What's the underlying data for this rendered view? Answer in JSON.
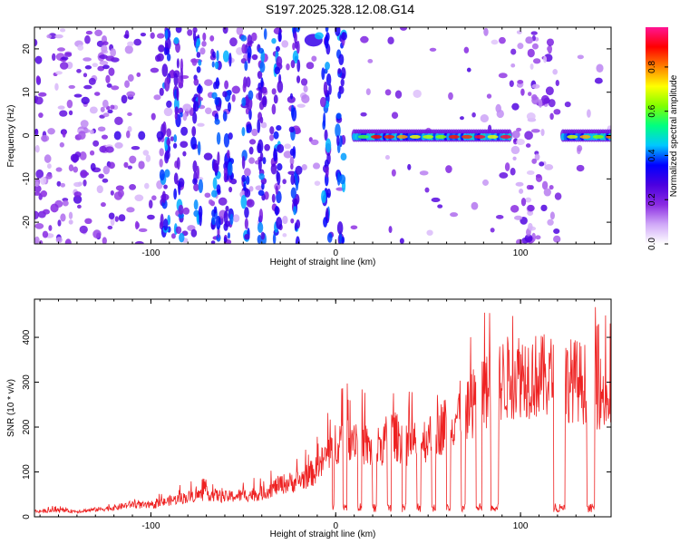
{
  "title": "S197.2025.328.12.08.G14",
  "chart_data": [
    {
      "type": "heatmap",
      "xlabel": "Height of straight line (km)",
      "ylabel": "Frequency (Hz)",
      "xlim": [
        -163,
        149
      ],
      "ylim": [
        -25,
        25
      ],
      "x_ticks": [
        -100,
        0,
        100
      ],
      "y_ticks": [
        -20,
        -10,
        0,
        10,
        20
      ],
      "grid": false,
      "colorbar": {
        "label": "Normalized spectral amplitude",
        "range": [
          0,
          0.98
        ],
        "ticks": [
          0.0,
          0.2,
          0.4,
          0.6,
          0.8
        ],
        "tick_labels": [
          "0.0",
          "0.2",
          "0.4",
          "0.6",
          "0.8"
        ],
        "colors": [
          "#ffffff",
          "#d0a8f8",
          "#8a2be2",
          "#4b00e0",
          "#0000ff",
          "#00c8ff",
          "#00ff80",
          "#80ff00",
          "#ffff00",
          "#ff8000",
          "#ff0000",
          "#ff1493"
        ]
      },
      "features": [
        {
          "description": "strong narrow band near 0 Hz",
          "x_range": [
            10,
            95
          ],
          "peak": 0.95
        },
        {
          "description": "strong narrow band near 0 Hz",
          "x_range": [
            123,
            149
          ],
          "peak": 0.95
        },
        {
          "description": "bright patch near top",
          "x_range": [
            -17,
            -7
          ],
          "freq": 22,
          "peak": 0.45
        }
      ]
    },
    {
      "type": "line",
      "xlabel": "Height of straight line (km)",
      "ylabel": "SNR (10 * v/v)",
      "xlim": [
        -163,
        149
      ],
      "ylim": [
        0,
        485
      ],
      "x_ticks": [
        -100,
        0,
        100
      ],
      "y_ticks": [
        0,
        100,
        200,
        300,
        400
      ],
      "grid": false,
      "color": "#ee2222",
      "x": [
        -163,
        -150,
        -140,
        -130,
        -120,
        -110,
        -100,
        -90,
        -80,
        -70,
        -60,
        -50,
        -40,
        -30,
        -20,
        -10,
        0,
        10,
        20,
        30,
        40,
        50,
        60,
        70,
        80,
        90,
        100,
        110,
        120,
        130,
        140,
        149
      ],
      "y": [
        15,
        18,
        15,
        20,
        25,
        35,
        30,
        45,
        55,
        65,
        55,
        60,
        65,
        90,
        100,
        130,
        210,
        230,
        180,
        230,
        200,
        220,
        260,
        300,
        340,
        380,
        400,
        390,
        385,
        380,
        360,
        320
      ]
    }
  ]
}
